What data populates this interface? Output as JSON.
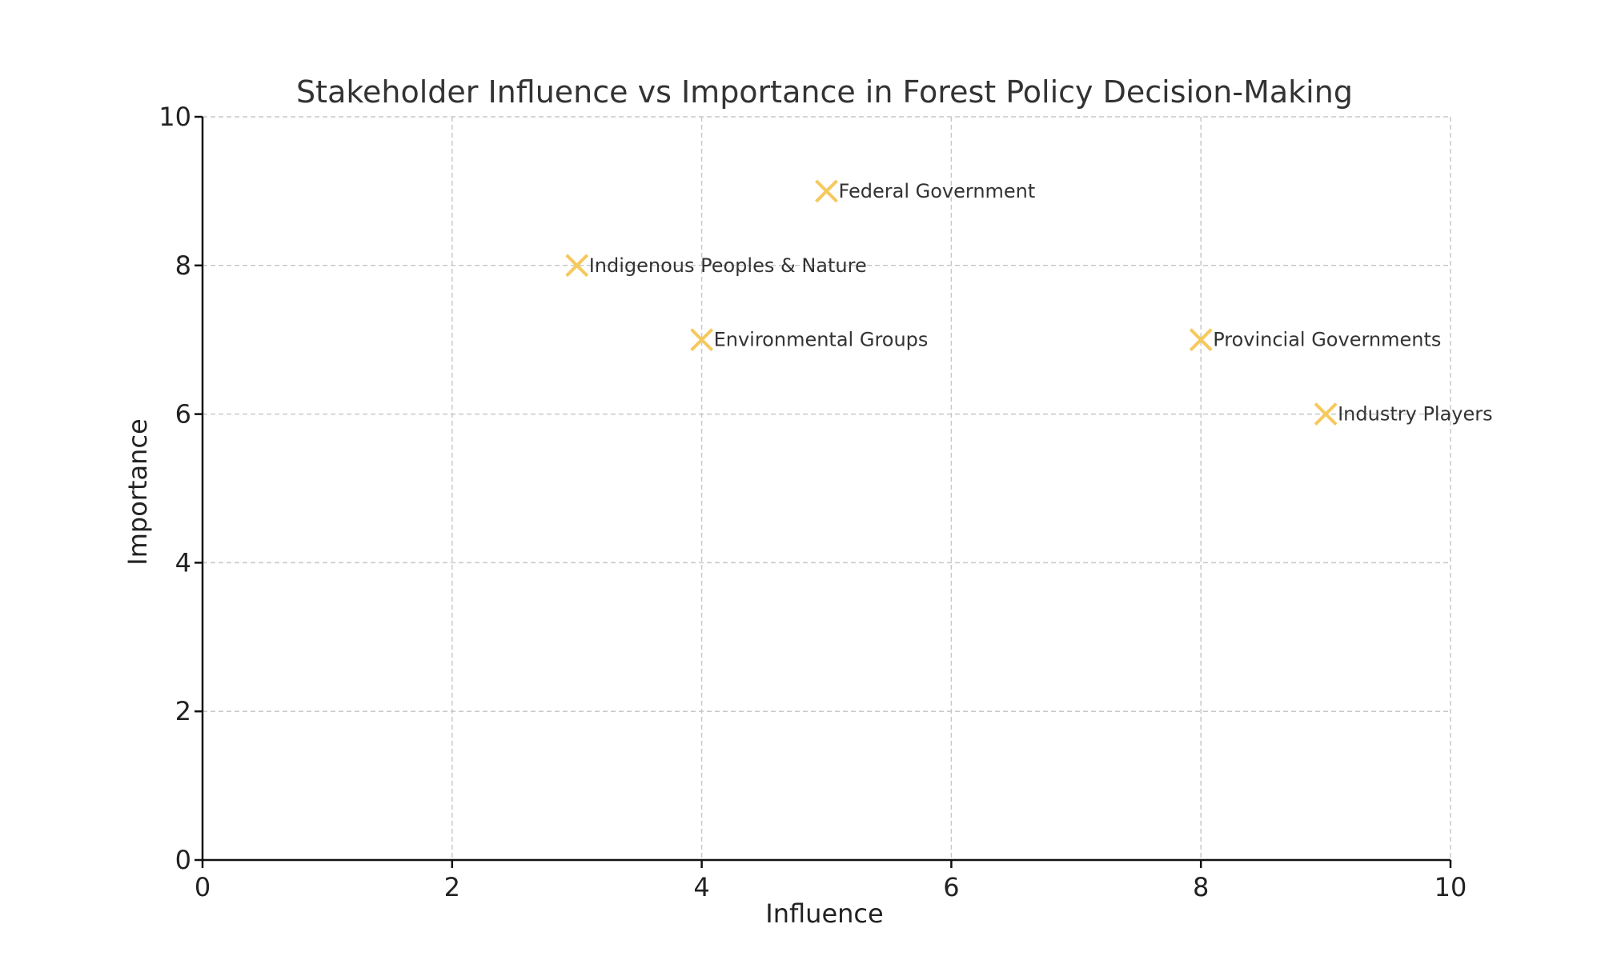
{
  "chart_data": {
    "type": "scatter",
    "title": "Stakeholder Influence vs Importance in Forest Policy Decision-Making",
    "xlabel": "Influence",
    "ylabel": "Importance",
    "xlim": [
      0,
      10
    ],
    "ylim": [
      0,
      10
    ],
    "xticks": [
      "0",
      "2",
      "4",
      "6",
      "8",
      "10"
    ],
    "yticks": [
      "0",
      "2",
      "4",
      "6",
      "8",
      "10"
    ],
    "grid": true,
    "marker": "x",
    "marker_color": "#F6C95E",
    "points": [
      {
        "label": "Federal Government",
        "x": 5,
        "y": 9
      },
      {
        "label": "Indigenous Peoples & Nature",
        "x": 3,
        "y": 8
      },
      {
        "label": "Environmental Groups",
        "x": 4,
        "y": 7
      },
      {
        "label": "Provincial Governments",
        "x": 8,
        "y": 7
      },
      {
        "label": "Industry Players",
        "x": 9,
        "y": 6
      }
    ]
  }
}
